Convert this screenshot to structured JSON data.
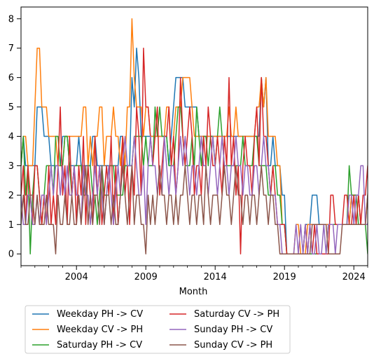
{
  "chart_data": {
    "type": "line",
    "title": "",
    "xlabel": "Month",
    "ylabel": "",
    "xlim": [
      2000.0,
      2025.0
    ],
    "ylim": [
      -0.4,
      8.4
    ],
    "x_ticks": [
      2004,
      2009,
      2014,
      2019,
      2024
    ],
    "x_tick_labels": [
      "2004",
      "2009",
      "2014",
      "2019",
      "2024"
    ],
    "y_ticks": [
      0,
      1,
      2,
      3,
      4,
      5,
      6,
      7,
      8
    ],
    "y_tick_labels": [
      "0",
      "1",
      "2",
      "3",
      "4",
      "5",
      "6",
      "7",
      "8"
    ],
    "grid": false,
    "legend_position": "below-plot, two columns",
    "x_start_year": 2000.0,
    "x_step_months": 2,
    "series": [
      {
        "name": "Weekday PH -> CV",
        "color": "#1f77b4",
        "values": [
          3,
          4,
          3,
          3,
          3,
          3,
          3,
          5,
          5,
          5,
          4,
          4,
          4,
          3,
          3,
          3,
          3,
          3,
          4,
          4,
          4,
          3,
          3,
          3,
          3,
          4,
          3,
          3,
          3,
          3,
          3,
          4,
          4,
          3,
          3,
          3,
          3,
          3,
          3,
          3,
          3,
          3,
          3,
          4,
          4,
          3,
          3,
          3,
          6,
          5,
          7,
          6,
          4,
          4,
          4,
          4,
          4,
          4,
          4,
          4,
          4,
          4,
          4,
          4,
          3,
          4,
          5,
          6,
          6,
          6,
          6,
          5,
          5,
          5,
          5,
          5,
          5,
          4,
          4,
          4,
          4,
          4,
          4,
          4,
          4,
          4,
          4,
          4,
          4,
          4,
          4,
          4,
          4,
          4,
          4,
          4,
          4,
          4,
          4,
          4,
          4,
          4,
          4,
          4,
          6,
          5,
          6,
          3,
          3,
          4,
          3,
          3,
          3,
          2,
          2,
          0,
          0,
          0,
          0,
          0,
          0,
          0,
          0,
          1,
          1,
          1,
          2,
          2,
          2,
          1,
          1,
          1,
          1,
          1,
          1,
          1,
          1,
          1,
          1,
          1,
          1,
          1,
          1,
          2,
          2,
          2,
          2,
          1,
          1,
          1,
          1,
          2,
          2
        ]
      },
      {
        "name": "Weekday CV -> PH",
        "color": "#ff7f0e",
        "values": [
          3,
          4,
          4,
          3,
          3,
          3,
          5,
          7,
          7,
          5,
          5,
          5,
          4,
          4,
          4,
          4,
          3,
          3,
          3,
          4,
          4,
          4,
          4,
          4,
          4,
          4,
          4,
          5,
          5,
          3,
          4,
          3,
          4,
          4,
          5,
          5,
          3,
          4,
          4,
          4,
          5,
          4,
          4,
          3,
          4,
          3,
          5,
          5,
          8,
          6,
          5,
          5,
          5,
          4,
          5,
          5,
          4,
          4,
          4,
          4,
          4,
          4,
          4,
          5,
          5,
          3,
          4,
          5,
          5,
          5,
          6,
          6,
          6,
          6,
          5,
          4,
          4,
          4,
          4,
          4,
          4,
          4,
          4,
          4,
          4,
          4,
          4,
          4,
          4,
          4,
          5,
          4,
          4,
          5,
          4,
          4,
          4,
          4,
          4,
          4,
          4,
          4,
          5,
          5,
          6,
          5,
          6,
          4,
          4,
          4,
          4,
          3,
          3,
          1,
          1,
          0,
          0,
          0,
          0,
          1,
          1,
          0,
          0,
          0,
          1,
          1,
          1,
          1,
          1,
          1,
          1,
          1,
          1,
          1,
          1,
          1,
          1,
          1,
          1,
          1,
          1,
          1,
          1,
          2,
          2,
          2,
          2,
          1,
          1,
          1,
          2,
          2,
          3
        ]
      },
      {
        "name": "Saturday PH -> CV",
        "color": "#2ca02c",
        "values": [
          3,
          4,
          2,
          3,
          0,
          2,
          3,
          3,
          2,
          1,
          2,
          3,
          3,
          3,
          2,
          4,
          4,
          3,
          3,
          4,
          4,
          3,
          2,
          3,
          3,
          3,
          3,
          2,
          2,
          3,
          3,
          2,
          2,
          1,
          2,
          3,
          2,
          2,
          3,
          3,
          3,
          2,
          2,
          2,
          2,
          3,
          3,
          3,
          3,
          4,
          4,
          4,
          4,
          3,
          4,
          3,
          3,
          3,
          5,
          4,
          5,
          4,
          4,
          4,
          3,
          3,
          3,
          4,
          5,
          5,
          4,
          3,
          3,
          3,
          4,
          3,
          5,
          4,
          3,
          4,
          4,
          3,
          4,
          4,
          3,
          4,
          5,
          4,
          3,
          3,
          3,
          3,
          3,
          3,
          3,
          3,
          4,
          3,
          3,
          3,
          3,
          4,
          4,
          3,
          3,
          3,
          3,
          2,
          2,
          3,
          3,
          2,
          2,
          1,
          1,
          0,
          0,
          0,
          0,
          0,
          0,
          0,
          0,
          0,
          0,
          0,
          0,
          0,
          0,
          0,
          0,
          0,
          0,
          1,
          1,
          1,
          1,
          1,
          1,
          1,
          1,
          1,
          3,
          2,
          2,
          2,
          1,
          1,
          1,
          1,
          0,
          1,
          2
        ]
      },
      {
        "name": "Saturday CV -> PH",
        "color": "#d62728",
        "values": [
          2,
          3,
          1,
          3,
          2,
          1,
          3,
          3,
          2,
          1,
          2,
          1,
          3,
          1,
          2,
          1,
          3,
          5,
          2,
          3,
          1,
          4,
          2,
          3,
          1,
          3,
          2,
          4,
          1,
          3,
          2,
          1,
          4,
          2,
          3,
          1,
          2,
          3,
          2,
          4,
          1,
          3,
          1,
          2,
          4,
          2,
          3,
          1,
          3,
          2,
          5,
          4,
          2,
          7,
          5,
          5,
          4,
          3,
          4,
          5,
          2,
          3,
          4,
          4,
          5,
          3,
          4,
          2,
          3,
          6,
          4,
          3,
          4,
          5,
          4,
          2,
          3,
          3,
          2,
          4,
          3,
          5,
          4,
          3,
          3,
          4,
          3,
          2,
          4,
          3,
          6,
          3,
          4,
          2,
          3,
          0,
          3,
          4,
          3,
          3,
          2,
          4,
          5,
          3,
          6,
          4,
          4,
          3,
          2,
          3,
          2,
          1,
          1,
          1,
          1,
          0,
          0,
          0,
          0,
          0,
          0,
          0,
          0,
          1,
          0,
          1,
          0,
          1,
          0,
          0,
          0,
          0,
          0,
          0,
          2,
          2,
          1,
          1,
          1,
          1,
          2,
          2,
          1,
          1,
          2,
          1,
          2,
          1,
          2,
          2,
          3,
          3
        ]
      },
      {
        "name": "Sunday PH -> CV",
        "color": "#9467bd",
        "values": [
          2,
          1,
          1,
          2,
          2,
          1,
          1,
          2,
          1,
          2,
          2,
          1,
          2,
          3,
          2,
          3,
          3,
          2,
          3,
          2,
          3,
          2,
          2,
          3,
          2,
          2,
          1,
          3,
          2,
          2,
          1,
          2,
          3,
          2,
          3,
          2,
          1,
          2,
          3,
          2,
          1,
          2,
          3,
          2,
          3,
          4,
          3,
          3,
          3,
          4,
          3,
          2,
          2,
          3,
          1,
          3,
          4,
          3,
          3,
          2,
          3,
          2,
          4,
          3,
          2,
          3,
          3,
          2,
          3,
          4,
          3,
          4,
          3,
          2,
          3,
          3,
          2,
          3,
          4,
          3,
          3,
          2,
          3,
          4,
          3,
          2,
          3,
          4,
          3,
          3,
          2,
          3,
          3,
          4,
          3,
          3,
          2,
          3,
          3,
          2,
          2,
          3,
          3,
          2,
          3,
          4,
          3,
          3,
          2,
          2,
          2,
          1,
          1,
          0,
          0,
          0,
          0,
          0,
          0,
          1,
          0,
          1,
          0,
          1,
          0,
          1,
          0,
          0,
          1,
          0,
          0,
          1,
          0,
          1,
          1,
          1,
          0,
          1,
          1,
          1,
          1,
          1,
          2,
          2,
          1,
          2,
          2,
          3,
          3,
          1,
          1,
          2,
          3
        ]
      },
      {
        "name": "Sunday CV -> PH",
        "color": "#8c564b",
        "values": [
          1,
          2,
          1,
          1,
          2,
          2,
          1,
          2,
          1,
          1,
          1,
          2,
          1,
          1,
          1,
          0,
          2,
          1,
          1,
          2,
          1,
          1,
          2,
          1,
          1,
          2,
          1,
          2,
          3,
          1,
          2,
          1,
          2,
          2,
          1,
          3,
          1,
          2,
          2,
          1,
          2,
          1,
          1,
          2,
          3,
          2,
          1,
          2,
          3,
          1,
          2,
          2,
          1,
          1,
          0,
          2,
          1,
          2,
          1,
          2,
          3,
          2,
          2,
          1,
          2,
          2,
          1,
          2,
          1,
          2,
          2,
          3,
          2,
          1,
          2,
          2,
          1,
          2,
          2,
          1,
          3,
          2,
          1,
          2,
          2,
          2,
          1,
          2,
          3,
          2,
          2,
          1,
          2,
          3,
          2,
          2,
          1,
          2,
          2,
          1,
          2,
          2,
          1,
          2,
          3,
          2,
          2,
          1,
          2,
          2,
          1,
          1,
          0,
          0,
          0,
          0,
          0,
          0,
          0,
          0,
          0,
          0,
          0,
          0,
          0,
          0,
          1,
          1,
          1,
          1,
          1,
          1,
          1,
          0,
          0,
          0,
          0,
          0,
          0,
          1,
          1,
          1,
          1,
          1,
          1,
          1,
          1,
          1,
          1,
          1,
          2,
          3
        ]
      }
    ]
  }
}
